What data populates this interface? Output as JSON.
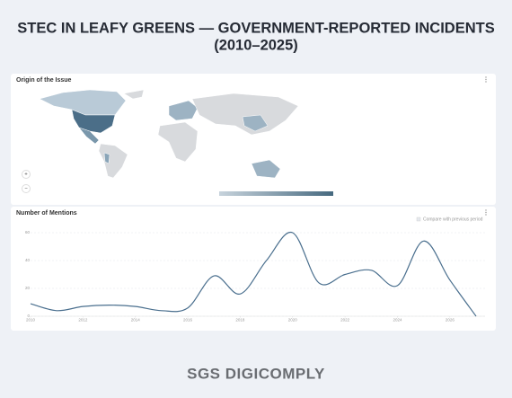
{
  "page_title": [
    "STEC IN LEAFY GREENS — GOVERNMENT-REPORTED INCIDENTS",
    "(2010–2025)"
  ],
  "map": {
    "title": "Origin of the Issue",
    "zoom_in": "+",
    "zoom_out": "−"
  },
  "compare_label": "Compare with previous period",
  "brand": "SGS DIGICOMPLY",
  "chart_data": {
    "type": "line",
    "title": "Number of Mentions",
    "x": [
      2010,
      2011,
      2012,
      2013,
      2014,
      2015,
      2016,
      2017,
      2018,
      2019,
      2020,
      2021,
      2022,
      2023,
      2024,
      2025,
      2026,
      2027
    ],
    "series": [
      {
        "name": "Mentions",
        "color": "#4a6f8e",
        "values": [
          9,
          4,
          7,
          8,
          7,
          4,
          6,
          29,
          16,
          40,
          60,
          24,
          30,
          33,
          22,
          54,
          26,
          0
        ]
      }
    ],
    "xlim": [
      2010,
      2027
    ],
    "xticks": [
      2010,
      2012,
      2014,
      2016,
      2018,
      2020,
      2022,
      2024,
      2026
    ],
    "ylim": [
      0,
      60
    ],
    "yticks": [
      0,
      20,
      40,
      60
    ],
    "grid": true
  }
}
